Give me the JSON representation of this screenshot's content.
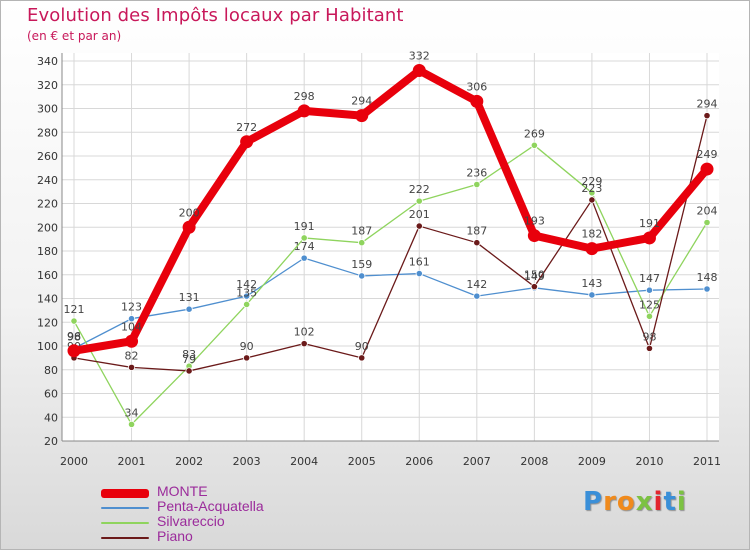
{
  "chart_data": {
    "type": "line",
    "title": "Evolution des Impôts locaux par Habitant",
    "subtitle": "(en € et par an)",
    "categories": [
      "2000",
      "2001",
      "2002",
      "2003",
      "2004",
      "2005",
      "2006",
      "2007",
      "2008",
      "2009",
      "2010",
      "2011"
    ],
    "ylim": [
      20,
      340
    ],
    "yticks": [
      20,
      40,
      60,
      80,
      100,
      120,
      140,
      160,
      180,
      200,
      220,
      240,
      260,
      280,
      300,
      320,
      340
    ],
    "series": [
      {
        "name": "Penta-Acquatella",
        "color": "#4f8fcf",
        "values": [
          98,
          123,
          131,
          142,
          174,
          159,
          161,
          142,
          149,
          143,
          147,
          148
        ]
      },
      {
        "name": "Silvareccio",
        "color": "#8fd45e",
        "values": [
          121,
          34,
          83,
          135,
          191,
          187,
          222,
          236,
          269,
          229,
          125,
          204
        ]
      },
      {
        "name": "Piano",
        "color": "#6b1a1a",
        "values": [
          90,
          82,
          79,
          90,
          102,
          90,
          201,
          187,
          150,
          223,
          98,
          294
        ]
      },
      {
        "name": "MONTE",
        "color": "#e8000c",
        "values": [
          96,
          104,
          200,
          272,
          298,
          294,
          332,
          306,
          193,
          182,
          191,
          249
        ]
      }
    ],
    "legend_order": [
      "MONTE",
      "Penta-Acquatella",
      "Silvareccio",
      "Piano"
    ]
  },
  "brand": {
    "letters": [
      "P",
      "r",
      "o",
      "x",
      "i",
      "t",
      "i"
    ],
    "colors": [
      "#3a8fd8",
      "#f08a1c",
      "#f08a1c",
      "#7cc242",
      "#e3262e",
      "#3a8fd8",
      "#7cc242"
    ]
  }
}
